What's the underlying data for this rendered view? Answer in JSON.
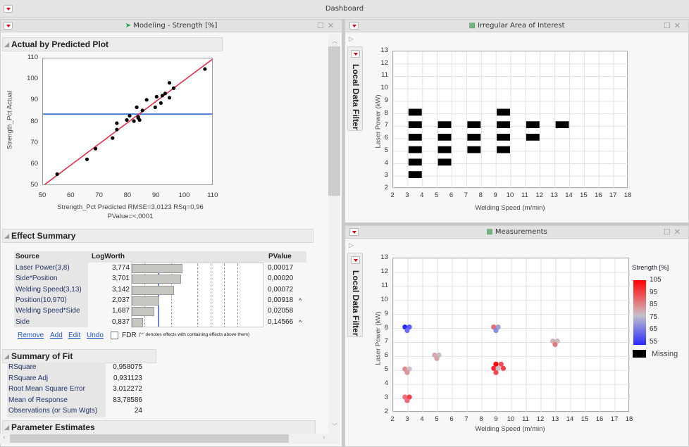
{
  "window": {
    "title": "Dashboard"
  },
  "left_panel": {
    "title": "Modeling - Strength [%]",
    "actual_by_predicted": {
      "section_title": "Actual by Predicted Plot",
      "ylabel": "Strength_Pct Actual",
      "xlabel": "Strength_Pct Predicted RMSE=3,0123 RSq=0,96",
      "xlabel2": "PValue=<,0001",
      "xticks": [
        "50",
        "60",
        "70",
        "80",
        "90",
        "100",
        "110"
      ],
      "yticks": [
        "110",
        "100",
        "90",
        "80",
        "70",
        "60",
        "50"
      ]
    },
    "effect_summary": {
      "section_title": "Effect Summary",
      "headers": {
        "source": "Source",
        "logworth": "LogWorth",
        "pvalue": "PValue"
      },
      "rows": [
        {
          "source": "Laser Power(3,8)",
          "logworth": "3,774",
          "pvalue": "0,00017",
          "flag": ""
        },
        {
          "source": "Side*Position",
          "logworth": "3,701",
          "pvalue": "0,00020",
          "flag": ""
        },
        {
          "source": "Welding Speed(3,13)",
          "logworth": "3,142",
          "pvalue": "0,00072",
          "flag": ""
        },
        {
          "source": "Position(10,970)",
          "logworth": "2,037",
          "pvalue": "0,00918",
          "flag": "^"
        },
        {
          "source": "Welding Speed*Side",
          "logworth": "1,687",
          "pvalue": "0,02058",
          "flag": ""
        },
        {
          "source": "Side",
          "logworth": "0,837",
          "pvalue": "0,14566",
          "flag": "^"
        }
      ],
      "buttons": {
        "remove": "Remove",
        "add": "Add",
        "edit": "Edit",
        "undo": "Undo"
      },
      "fdr_label": "FDR",
      "note": "('^' denotes effects with containing effects above them)"
    },
    "summary_of_fit": {
      "section_title": "Summary of Fit",
      "rows": [
        {
          "label": "RSquare",
          "value": "0,958075"
        },
        {
          "label": "RSquare Adj",
          "value": "0,931123"
        },
        {
          "label": "Root Mean Square Error",
          "value": "3,012272"
        },
        {
          "label": "Mean of Response",
          "value": "83,78586"
        },
        {
          "label": "Observations (or Sum Wgts)",
          "value": "24"
        }
      ]
    },
    "parameter_estimates": {
      "section_title": "Parameter Estimates"
    }
  },
  "irregular_panel": {
    "title": "Irregular Area of Interest",
    "filter_label": "Local Data Filter",
    "xlabel": "Welding Speed (m/min)",
    "ylabel": "Laser Power (kW)",
    "xticks": [
      "2",
      "3",
      "4",
      "5",
      "6",
      "7",
      "8",
      "9",
      "10",
      "11",
      "12",
      "13",
      "14",
      "15",
      "16",
      "17",
      "18"
    ],
    "yticks": [
      "13",
      "12",
      "11",
      "10",
      "9",
      "8",
      "7",
      "6",
      "5",
      "4",
      "3",
      "2"
    ]
  },
  "measurements_panel": {
    "title": "Measurements",
    "filter_label": "Local Data Filter",
    "xlabel": "Welding Speed (m/min)",
    "ylabel": "Laser Power (kW)",
    "xticks": [
      "2",
      "3",
      "4",
      "5",
      "6",
      "7",
      "8",
      "9",
      "10",
      "11",
      "12",
      "13",
      "14",
      "15",
      "16",
      "17",
      "18"
    ],
    "yticks": [
      "13",
      "12",
      "11",
      "10",
      "9",
      "8",
      "7",
      "6",
      "5",
      "4",
      "3",
      "2"
    ],
    "legend": {
      "title": "Strength [%]",
      "ticks": [
        "105",
        "95",
        "85",
        "75",
        "65",
        "55"
      ],
      "missing": "Missing"
    }
  },
  "colors": {
    "fit_line": "#e8304a",
    "mean_line": "#4a7be0",
    "bar": "#c8c6c0",
    "high": "#ff0000",
    "low": "#2a2aff"
  },
  "chart_data": [
    {
      "type": "scatter",
      "title": "Actual by Predicted Plot",
      "xlabel": "Strength_Pct Predicted",
      "ylabel": "Strength_Pct Actual",
      "xlim": [
        50,
        110
      ],
      "ylim": [
        50,
        110
      ],
      "points": [
        [
          55,
          55.5
        ],
        [
          65.5,
          62.5
        ],
        [
          68.5,
          67.5
        ],
        [
          74.5,
          72.5
        ],
        [
          76,
          79.5
        ],
        [
          76,
          76.5
        ],
        [
          79.5,
          81
        ],
        [
          80.5,
          83
        ],
        [
          82,
          80.5
        ],
        [
          83,
          87
        ],
        [
          83.5,
          82.5
        ],
        [
          83.5,
          82
        ],
        [
          84,
          81
        ],
        [
          85,
          85.5
        ],
        [
          86.5,
          90.5
        ],
        [
          89.5,
          87
        ],
        [
          90,
          92
        ],
        [
          91.5,
          89
        ],
        [
          92,
          92.5
        ],
        [
          93,
          93.5
        ],
        [
          94.5,
          98.5
        ],
        [
          94.5,
          91.5
        ],
        [
          96,
          96
        ],
        [
          107,
          105
        ]
      ],
      "fit_line": [
        [
          50,
          50
        ],
        [
          110,
          110
        ]
      ],
      "mean_line": 83.79
    },
    {
      "type": "heatmap",
      "title": "Irregular Area of Interest",
      "xlabel": "Welding Speed (m/min)",
      "ylabel": "Laser Power (kW)",
      "xlim": [
        2,
        18
      ],
      "ylim": [
        2,
        13
      ],
      "cells": [
        [
          3,
          3
        ],
        [
          3,
          4
        ],
        [
          3,
          5
        ],
        [
          3,
          6
        ],
        [
          3,
          7
        ],
        [
          3,
          8
        ],
        [
          5,
          4
        ],
        [
          5,
          5
        ],
        [
          5,
          6
        ],
        [
          5,
          7
        ],
        [
          7,
          5
        ],
        [
          7,
          6
        ],
        [
          7,
          7
        ],
        [
          9,
          5
        ],
        [
          9,
          6
        ],
        [
          9,
          7
        ],
        [
          9,
          8
        ],
        [
          11,
          6
        ],
        [
          11,
          7
        ],
        [
          13,
          7
        ]
      ]
    },
    {
      "type": "scatter",
      "title": "Measurements",
      "xlabel": "Welding Speed (m/min)",
      "ylabel": "Laser Power (kW)",
      "xlim": [
        2,
        18
      ],
      "ylim": [
        2,
        13
      ],
      "color_scale": {
        "label": "Strength [%]",
        "min": 55,
        "max": 105
      },
      "points": [
        {
          "x": 2.8,
          "y": 8.1,
          "c": "#2a2aff"
        },
        {
          "x": 3.1,
          "y": 8.1,
          "c": "#5a5aff"
        },
        {
          "x": 2.95,
          "y": 7.85,
          "c": "#6d6dff"
        },
        {
          "x": 2.8,
          "y": 5.1,
          "c": "#e08a90"
        },
        {
          "x": 3.1,
          "y": 5.1,
          "c": "#c8c0c4"
        },
        {
          "x": 2.95,
          "y": 4.85,
          "c": "#d89a9f"
        },
        {
          "x": 2.8,
          "y": 3.1,
          "c": "#f0707a"
        },
        {
          "x": 3.1,
          "y": 3.1,
          "c": "#f04050"
        },
        {
          "x": 2.95,
          "y": 2.85,
          "c": "#ec6a74"
        },
        {
          "x": 4.8,
          "y": 6.1,
          "c": "#d4aaae"
        },
        {
          "x": 5.1,
          "y": 6.1,
          "c": "#c8bcc0"
        },
        {
          "x": 4.95,
          "y": 5.85,
          "c": "#d4a6aa"
        },
        {
          "x": 8.8,
          "y": 8.1,
          "c": "#e86a72"
        },
        {
          "x": 9.1,
          "y": 8.1,
          "c": "#a0a0d8"
        },
        {
          "x": 8.95,
          "y": 7.85,
          "c": "#8a8ae8"
        },
        {
          "x": 8.95,
          "y": 5.45,
          "c": "#ff0010"
        },
        {
          "x": 9.3,
          "y": 5.45,
          "c": "#f0505c"
        },
        {
          "x": 8.8,
          "y": 5.15,
          "c": "#ff2030"
        },
        {
          "x": 9.1,
          "y": 5.15,
          "c": "#c8c0c4"
        },
        {
          "x": 9.45,
          "y": 5.15,
          "c": "#f04050"
        },
        {
          "x": 8.95,
          "y": 4.85,
          "c": "#ef4a58"
        },
        {
          "x": 12.8,
          "y": 7.1,
          "c": "#d0aeb2"
        },
        {
          "x": 13.1,
          "y": 7.1,
          "c": "#c8bcc0"
        },
        {
          "x": 12.95,
          "y": 6.85,
          "c": "#e07880"
        }
      ]
    }
  ]
}
